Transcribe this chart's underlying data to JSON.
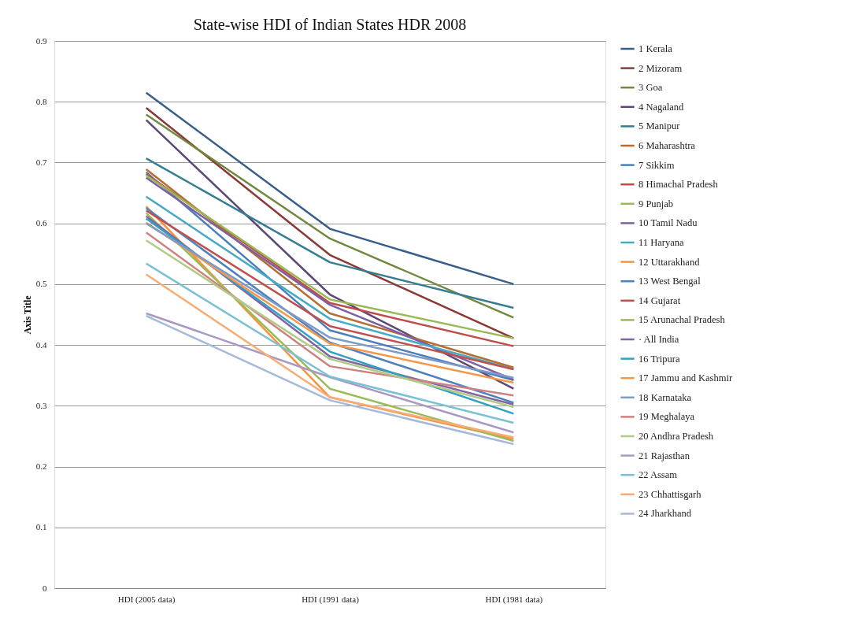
{
  "chart_data": {
    "type": "line",
    "title": "State-wise HDI of Indian States HDR 2008",
    "ylabel": "Axis Title",
    "categories": [
      "HDI (2005 data)",
      "HDI (1991 data)",
      "HDI (1981 data)"
    ],
    "ylim": [
      0,
      0.9
    ],
    "yticks": [
      0,
      0.1,
      0.2,
      0.3,
      0.4,
      0.5,
      0.6,
      0.7,
      0.8,
      0.9
    ],
    "grid": "y",
    "legend": "right",
    "marker": "none",
    "series": [
      {
        "name": "1 Kerala",
        "color": "#385d8a",
        "values": [
          0.815,
          0.591,
          0.5
        ]
      },
      {
        "name": "2 Mizoram",
        "color": "#8c3836",
        "values": [
          0.79,
          0.548,
          0.411
        ]
      },
      {
        "name": "3 Goa",
        "color": "#71893f",
        "values": [
          0.779,
          0.575,
          0.445
        ]
      },
      {
        "name": "4 Nagaland",
        "color": "#5c4776",
        "values": [
          0.77,
          0.483,
          0.328
        ]
      },
      {
        "name": "5 Manipur",
        "color": "#357d91",
        "values": [
          0.707,
          0.536,
          0.461
        ]
      },
      {
        "name": "6 Maharashtra",
        "color": "#b66d31",
        "values": [
          0.689,
          0.452,
          0.363
        ]
      },
      {
        "name": "7 Sikkim",
        "color": "#4a7ebb",
        "values": [
          0.684,
          0.424,
          0.342
        ]
      },
      {
        "name": "8 Himachal  Pradesh",
        "color": "#be4b48",
        "values": [
          0.681,
          0.469,
          0.398
        ]
      },
      {
        "name": "9 Punjab",
        "color": "#98b954",
        "values": [
          0.679,
          0.475,
          0.411
        ]
      },
      {
        "name": "10 Tamil Nadu",
        "color": "#7d60a0",
        "values": [
          0.675,
          0.466,
          0.343
        ]
      },
      {
        "name": "11 Haryana",
        "color": "#46aac5",
        "values": [
          0.644,
          0.443,
          0.36
        ]
      },
      {
        "name": "12 Uttarakhand",
        "color": "#f69240",
        "values": [
          0.628,
          0.314,
          0.245
        ]
      },
      {
        "name": "13 West Bengal",
        "color": "#4f81bd",
        "values": [
          0.625,
          0.404,
          0.305
        ]
      },
      {
        "name": "14 Gujarat",
        "color": "#c0504d",
        "values": [
          0.621,
          0.431,
          0.36
        ]
      },
      {
        "name": "15 Arunachal Pradesh",
        "color": "#9bbb59",
        "values": [
          0.617,
          0.328,
          0.242
        ]
      },
      {
        "name": "· All India",
        "color": "#8064a2",
        "values": [
          0.612,
          0.381,
          0.302
        ]
      },
      {
        "name": "16 Tripura",
        "color": "#31a0c4",
        "values": [
          0.608,
          0.389,
          0.287
        ]
      },
      {
        "name": "17 Jammu and Kashmir",
        "color": "#f79646",
        "values": [
          0.601,
          0.402,
          0.338
        ]
      },
      {
        "name": "18 Karnataka",
        "color": "#7e9bc8",
        "values": [
          0.6,
          0.412,
          0.346
        ]
      },
      {
        "name": "19 Meghalaya",
        "color": "#ce8180",
        "values": [
          0.585,
          0.365,
          0.317
        ]
      },
      {
        "name": "20 Andhra Pradesh",
        "color": "#b1ca85",
        "values": [
          0.572,
          0.377,
          0.298
        ]
      },
      {
        "name": "21 Rajasthan",
        "color": "#a998c2",
        "values": [
          0.452,
          0.347,
          0.256
        ]
      },
      {
        "name": "22 Assam",
        "color": "#7bc0d4",
        "values": [
          0.534,
          0.348,
          0.272
        ]
      },
      {
        "name": "23 Chhattisgarh",
        "color": "#f8ab73",
        "values": [
          0.516,
          0.314,
          0.248
        ]
      },
      {
        "name": "24 Jharkhand",
        "color": "#a5b9da",
        "values": [
          0.448,
          0.309,
          0.237
        ]
      }
    ]
  }
}
